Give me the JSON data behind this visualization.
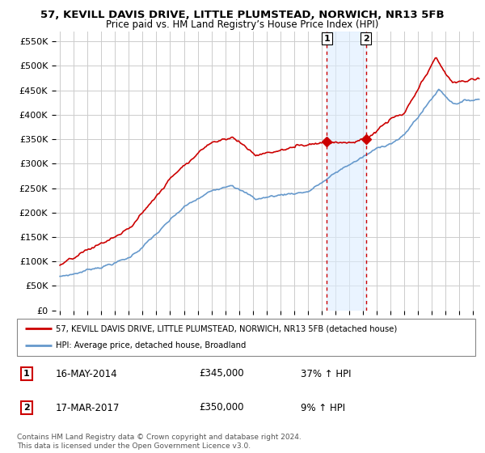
{
  "title_line1": "57, KEVILL DAVIS DRIVE, LITTLE PLUMSTEAD, NORWICH, NR13 5FB",
  "title_line2": "Price paid vs. HM Land Registry’s House Price Index (HPI)",
  "ylabel_ticks": [
    "£0",
    "£50K",
    "£100K",
    "£150K",
    "£200K",
    "£250K",
    "£300K",
    "£350K",
    "£400K",
    "£450K",
    "£500K",
    "£550K"
  ],
  "ytick_values": [
    0,
    50000,
    100000,
    150000,
    200000,
    250000,
    300000,
    350000,
    400000,
    450000,
    500000,
    550000
  ],
  "ylim": [
    0,
    570000
  ],
  "xlim_start": 1994.7,
  "xlim_end": 2025.5,
  "sale1_x": 2014.37,
  "sale1_y": 345000,
  "sale2_x": 2017.21,
  "sale2_y": 350000,
  "sale1_label": "16-MAY-2014",
  "sale1_price": "£345,000",
  "sale1_hpi": "37% ↑ HPI",
  "sale2_label": "17-MAR-2017",
  "sale2_price": "£350,000",
  "sale2_hpi": "9% ↑ HPI",
  "legend_line1": "57, KEVILL DAVIS DRIVE, LITTLE PLUMSTEAD, NORWICH, NR13 5FB (detached house)",
  "legend_line2": "HPI: Average price, detached house, Broadland",
  "footer": "Contains HM Land Registry data © Crown copyright and database right 2024.\nThis data is licensed under the Open Government Licence v3.0.",
  "red_color": "#cc0000",
  "blue_color": "#6699cc",
  "shade_color": "#ddeeff",
  "grid_color": "#cccccc",
  "background_color": "#ffffff"
}
